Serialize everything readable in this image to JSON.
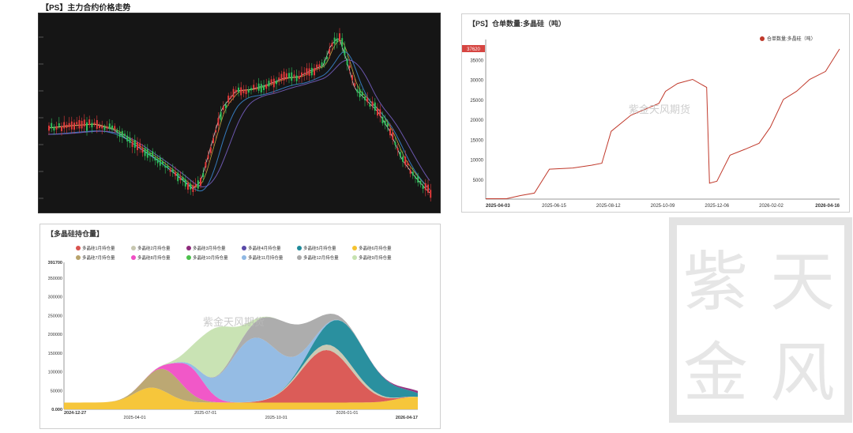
{
  "top_title": "【PS】主力合约价格走势",
  "colors": {
    "up": "#e23a3a",
    "down": "#2fbf5a",
    "ma1": "#f5f5f5",
    "ma2": "#e7c24a",
    "ma3": "#3b8bd8",
    "ma4": "#7a63c9",
    "warehouse": "#c0392b",
    "watermark": "#b9b9b9"
  },
  "chart_data": [
    {
      "type": "candlestick",
      "title": "【PS】主力合约价格走势",
      "legend": [],
      "series_count": 1,
      "grid": false
    },
    {
      "type": "line",
      "title": "【PS】仓单数量:多晶硅（吨）",
      "legend": [
        "仓单数量:多晶硅（吨）"
      ],
      "legend_position": "top-right",
      "last_value_label": "37620",
      "x_ticks": [
        "2025-04-03",
        "2025-06-15",
        "2025-08-12",
        "2025-10-09",
        "2025-12-06",
        "2026-02-02",
        "2026-04-16"
      ],
      "y_ticks": [
        5000,
        10000,
        15000,
        20000,
        25000,
        30000,
        35000
      ],
      "ylim": [
        0,
        40000
      ],
      "x": [
        "2025-04-03",
        "2025-04-25",
        "2025-05-10",
        "2025-05-25",
        "2025-06-10",
        "2025-07-05",
        "2025-07-25",
        "2025-08-05",
        "2025-08-15",
        "2025-09-05",
        "2025-09-25",
        "2025-10-05",
        "2025-10-12",
        "2025-10-25",
        "2025-11-10",
        "2025-11-25",
        "2025-11-28",
        "2025-12-06",
        "2025-12-20",
        "2026-01-05",
        "2026-01-20",
        "2026-02-01",
        "2026-02-15",
        "2026-03-01",
        "2026-03-15",
        "2026-04-01",
        "2026-04-16"
      ],
      "values": [
        100,
        100,
        900,
        1500,
        7500,
        7800,
        8500,
        9000,
        17000,
        21000,
        23000,
        24000,
        27000,
        29000,
        30000,
        28000,
        4000,
        4500,
        11000,
        12500,
        14000,
        18000,
        25000,
        27000,
        30000,
        32000,
        37620
      ]
    },
    {
      "type": "area",
      "title": "【多晶硅持仓量】",
      "legend_position": "top",
      "legend": [
        "多晶硅1月持仓量",
        "多晶硅2月持仓量",
        "多晶硅3月持仓量",
        "多晶硅4月持仓量",
        "多晶硅5月持仓量",
        "多晶硅6月持仓量",
        "多晶硅7月持仓量",
        "多晶硅8月持仓量",
        "多晶硅10月持仓量",
        "多晶硅11月持仓量",
        "多晶硅12月持仓量",
        "多晶硅9月持仓量"
      ],
      "legend_colors": [
        "#d9534f",
        "#c7c7b0",
        "#8e2a7b",
        "#5a4aa8",
        "#1f8a9a",
        "#f5c330",
        "#b8a36b",
        "#f04fc5",
        "#4bc04b",
        "#8fb8e3",
        "#a9a9a9",
        "#c6e2b0"
      ],
      "y_max_label": "391700",
      "y_ticks": [
        "0.000",
        "50000",
        "100000",
        "150000",
        "200000",
        "250000",
        "300000",
        "350000"
      ],
      "x_ticks": [
        "2024-12-27",
        "2025-04-01",
        "2025-07-01",
        "2025-10-01",
        "2026-01-01",
        "2026-04-17"
      ],
      "ylim": [
        0,
        391700
      ]
    }
  ],
  "watermark_text": "紫金天风期货",
  "seal_text": [
    "紫",
    "天",
    "金",
    "风"
  ]
}
